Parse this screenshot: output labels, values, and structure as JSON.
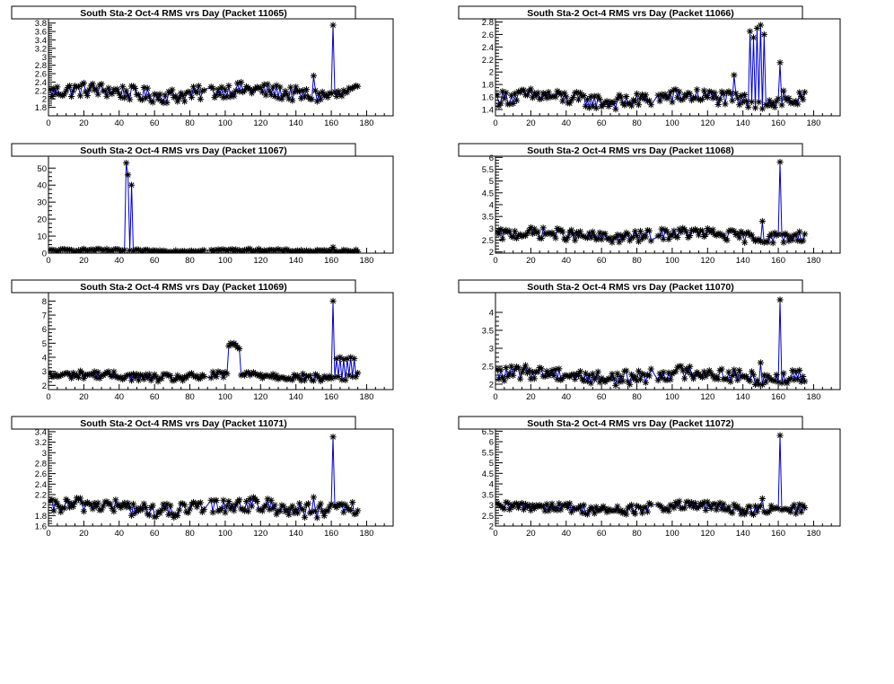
{
  "colors": {
    "line": "#0000cc",
    "marker": "#000000",
    "frame": "#000000",
    "background": "#ffffff"
  },
  "chart_data": [
    {
      "type": "scatter",
      "title": "South Sta-2 Oct-4 RMS vrs Day (Packet 11065)",
      "xlim": [
        0,
        195
      ],
      "ylim": [
        1.6,
        3.9
      ],
      "xticks": [
        0,
        20,
        40,
        60,
        80,
        100,
        120,
        140,
        160,
        180
      ],
      "yticks": [
        1.8,
        2,
        2.2,
        2.4,
        2.6,
        2.8,
        3,
        3.2,
        3.4,
        3.6,
        3.8
      ],
      "base": 2.15,
      "noise": 0.22,
      "spikes": [
        {
          "x": 150,
          "y": 2.55
        },
        {
          "x": 161,
          "y": 3.75
        }
      ]
    },
    {
      "type": "scatter",
      "title": "South Sta-2 Oct-4 RMS vrs Day (Packet 11066)",
      "xlim": [
        0,
        195
      ],
      "ylim": [
        1.3,
        2.85
      ],
      "xticks": [
        0,
        20,
        40,
        60,
        80,
        100,
        120,
        140,
        160,
        180
      ],
      "yticks": [
        1.4,
        1.6,
        1.8,
        2,
        2.2,
        2.4,
        2.6,
        2.8
      ],
      "base": 1.57,
      "noise": 0.15,
      "spikes": [
        {
          "x": 135,
          "y": 1.95
        },
        {
          "x": 144,
          "y": 2.65
        },
        {
          "x": 146,
          "y": 2.55
        },
        {
          "x": 148,
          "y": 2.7
        },
        {
          "x": 150,
          "y": 2.75
        },
        {
          "x": 152,
          "y": 2.6
        },
        {
          "x": 161,
          "y": 2.15
        },
        {
          "x": 163,
          "y": 1.7
        }
      ]
    },
    {
      "type": "scatter",
      "title": "South Sta-2 Oct-4 RMS vrs Day (Packet 11067)",
      "xlim": [
        0,
        195
      ],
      "ylim": [
        0,
        57
      ],
      "xticks": [
        0,
        20,
        40,
        60,
        80,
        100,
        120,
        140,
        160,
        180
      ],
      "yticks": [
        0,
        10,
        20,
        30,
        40,
        50
      ],
      "base": 1.5,
      "noise": 0.9,
      "spikes": [
        {
          "x": 44,
          "y": 53
        },
        {
          "x": 45,
          "y": 46
        },
        {
          "x": 47,
          "y": 40
        },
        {
          "x": 161,
          "y": 3.5
        }
      ]
    },
    {
      "type": "scatter",
      "title": "South Sta-2 Oct-4 RMS vrs Day (Packet 11068)",
      "xlim": [
        0,
        195
      ],
      "ylim": [
        1.95,
        6.05
      ],
      "xticks": [
        0,
        20,
        40,
        60,
        80,
        100,
        120,
        140,
        160,
        180
      ],
      "yticks": [
        2,
        2.5,
        3,
        3.5,
        4,
        4.5,
        5,
        5.5,
        6
      ],
      "base": 2.7,
      "noise": 0.3,
      "spikes": [
        {
          "x": 151,
          "y": 3.3
        },
        {
          "x": 161,
          "y": 5.8
        }
      ]
    },
    {
      "type": "scatter",
      "title": "South Sta-2 Oct-4 RMS vrs Day (Packet 11069)",
      "xlim": [
        0,
        195
      ],
      "ylim": [
        1.7,
        8.6
      ],
      "xticks": [
        0,
        20,
        40,
        60,
        80,
        100,
        120,
        140,
        160,
        180
      ],
      "yticks": [
        2,
        3,
        4,
        5,
        6,
        7,
        8
      ],
      "base": 2.65,
      "noise": 0.35,
      "spikes": [
        {
          "x": 102,
          "y": 4.8
        },
        {
          "x": 103,
          "y": 5.0
        },
        {
          "x": 104,
          "y": 4.9
        },
        {
          "x": 105,
          "y": 5.0
        },
        {
          "x": 106,
          "y": 4.85
        },
        {
          "x": 107,
          "y": 4.7
        },
        {
          "x": 108,
          "y": 4.6
        },
        {
          "x": 161,
          "y": 8.0
        },
        {
          "x": 163,
          "y": 3.9
        },
        {
          "x": 165,
          "y": 4.0
        },
        {
          "x": 167,
          "y": 3.85
        },
        {
          "x": 169,
          "y": 3.9
        },
        {
          "x": 171,
          "y": 4.0
        },
        {
          "x": 173,
          "y": 3.9
        }
      ]
    },
    {
      "type": "scatter",
      "title": "South Sta-2 Oct-4 RMS vrs Day (Packet 11070)",
      "xlim": [
        0,
        195
      ],
      "ylim": [
        1.85,
        4.55
      ],
      "xticks": [
        0,
        20,
        40,
        60,
        80,
        100,
        120,
        140,
        160,
        180
      ],
      "yticks": [
        2,
        2.5,
        3,
        3.5,
        4
      ],
      "base": 2.25,
      "noise": 0.25,
      "spikes": [
        {
          "x": 150,
          "y": 2.6
        },
        {
          "x": 161,
          "y": 4.35
        }
      ]
    },
    {
      "type": "scatter",
      "title": "South Sta-2 Oct-4 RMS vrs Day (Packet 11071)",
      "xlim": [
        0,
        195
      ],
      "ylim": [
        1.6,
        3.45
      ],
      "xticks": [
        0,
        20,
        40,
        60,
        80,
        100,
        120,
        140,
        160,
        180
      ],
      "yticks": [
        1.6,
        1.8,
        2,
        2.2,
        2.4,
        2.6,
        2.8,
        3,
        3.2,
        3.4
      ],
      "base": 1.95,
      "noise": 0.18,
      "spikes": [
        {
          "x": 150,
          "y": 2.15
        },
        {
          "x": 161,
          "y": 3.3
        }
      ]
    },
    {
      "type": "scatter",
      "title": "South Sta-2 Oct-4 RMS vrs Day (Packet 11072)",
      "xlim": [
        0,
        195
      ],
      "ylim": [
        2.0,
        6.6
      ],
      "xticks": [
        0,
        20,
        40,
        60,
        80,
        100,
        120,
        140,
        160,
        180
      ],
      "yticks": [
        2,
        2.5,
        3,
        3.5,
        4,
        4.5,
        5,
        5.5,
        6,
        6.5
      ],
      "base": 2.85,
      "noise": 0.3,
      "spikes": [
        {
          "x": 151,
          "y": 3.3
        },
        {
          "x": 161,
          "y": 6.3
        }
      ]
    }
  ]
}
